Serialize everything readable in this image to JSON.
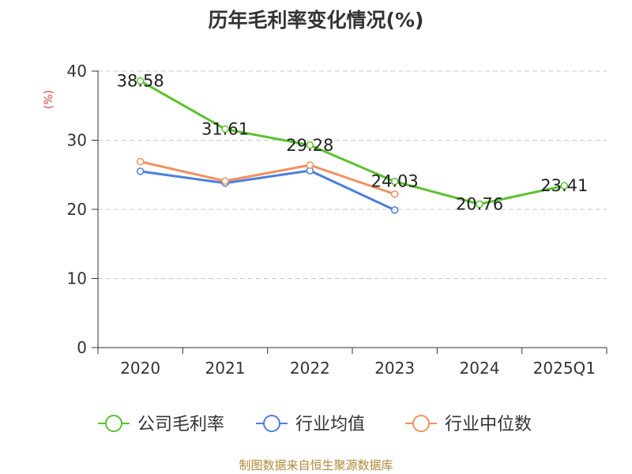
{
  "chart_data": {
    "type": "line",
    "title": "历年毛利率变化情况(%)",
    "ylabel": "(%)",
    "xlabel": "",
    "ylim": [
      0,
      40
    ],
    "yticks": [
      0,
      10,
      20,
      30,
      40
    ],
    "grid": true,
    "legend_position": "bottom",
    "categories": [
      "2020",
      "2021",
      "2022",
      "2023",
      "2024",
      "2025Q1"
    ],
    "series": [
      {
        "name": "公司毛利率",
        "color": "#5cc12e",
        "values": [
          38.58,
          31.61,
          29.28,
          24.03,
          20.76,
          23.41
        ],
        "labels": [
          "38.58",
          "31.61",
          "29.28",
          "24.03",
          "20.76",
          "23.41"
        ],
        "show_labels": true
      },
      {
        "name": "行业均值",
        "color": "#4a7fd9",
        "values": [
          25.5,
          23.8,
          25.6,
          19.9,
          null,
          null
        ],
        "show_labels": false
      },
      {
        "name": "行业中位数",
        "color": "#f3905f",
        "values": [
          26.9,
          24.1,
          26.4,
          22.2,
          null,
          null
        ],
        "show_labels": false
      }
    ]
  },
  "source": "制图数据来自恒生聚源数据库"
}
